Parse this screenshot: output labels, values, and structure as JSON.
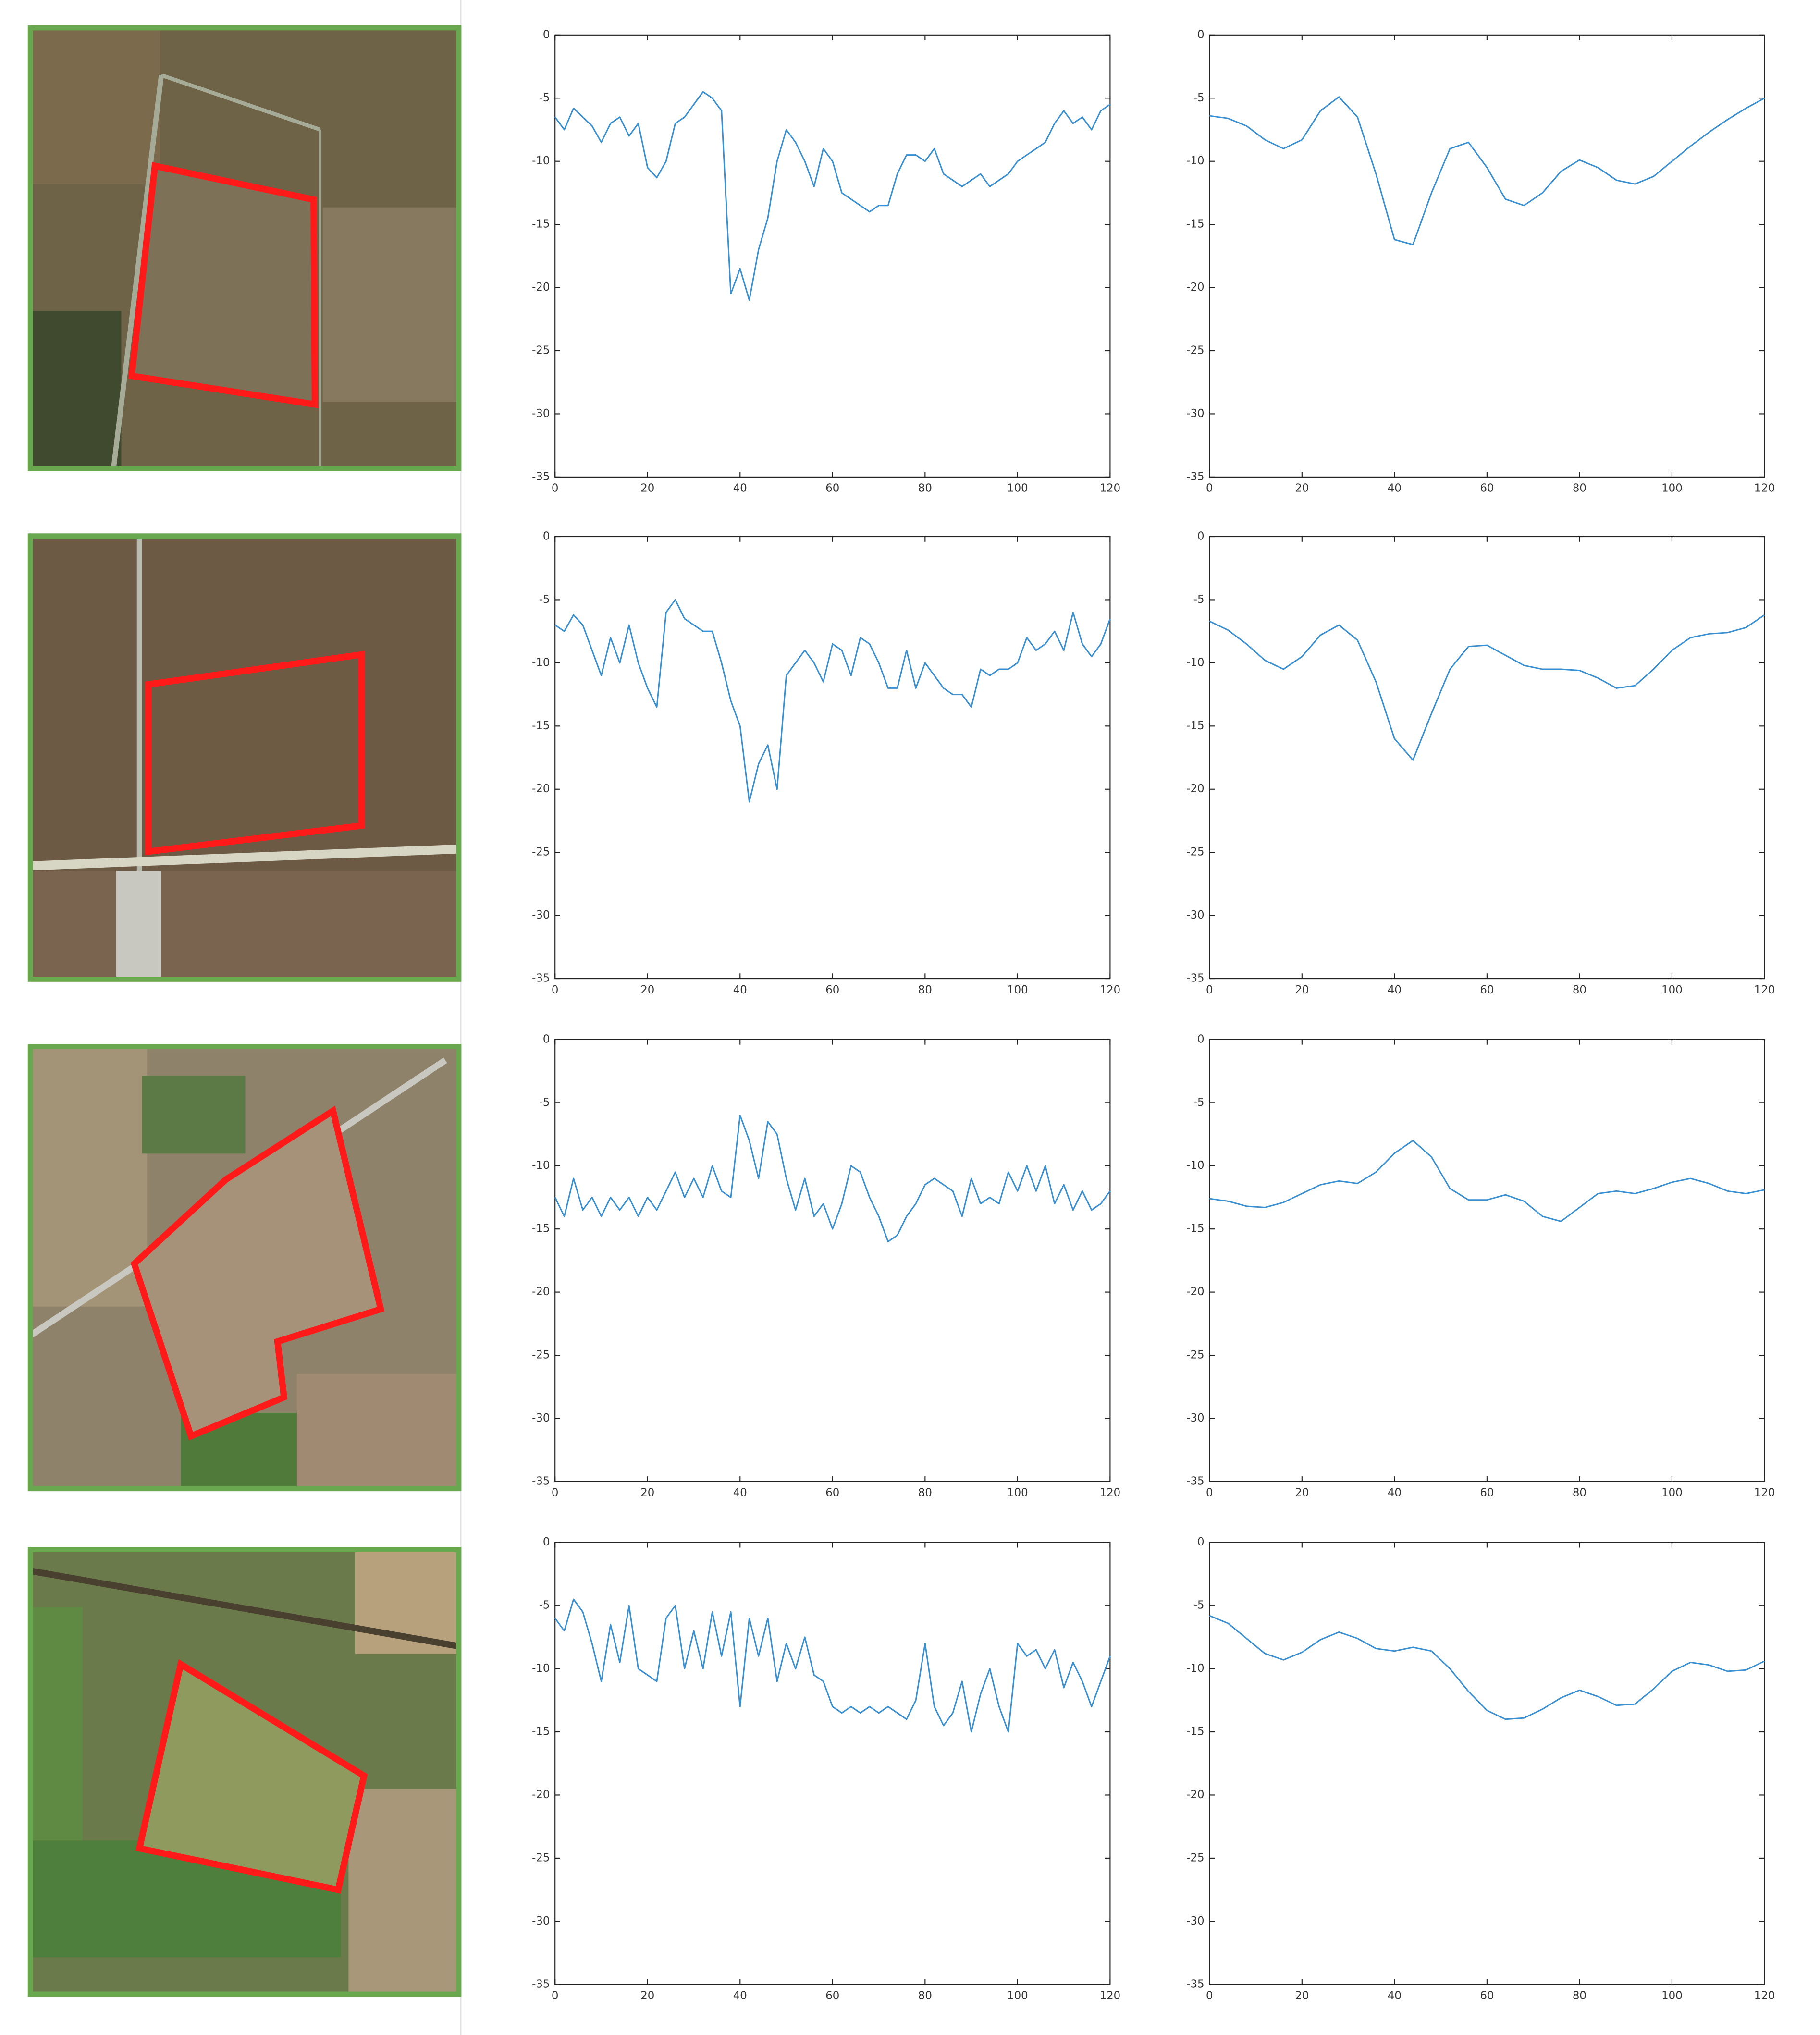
{
  "chart_data": [
    {
      "type": "line",
      "color": "#3a8fd0",
      "xlim": [
        0,
        120
      ],
      "ylim": [
        -35,
        0
      ],
      "xticks": [
        0,
        20,
        40,
        60,
        80,
        100,
        120
      ],
      "yticks": [
        -35,
        -30,
        -25,
        -20,
        -15,
        -10,
        -5,
        0
      ],
      "x": [
        0,
        2,
        4,
        6,
        8,
        10,
        12,
        14,
        16,
        18,
        20,
        22,
        24,
        26,
        28,
        30,
        32,
        34,
        36,
        38,
        40,
        42,
        44,
        46,
        48,
        50,
        52,
        54,
        56,
        58,
        60,
        62,
        64,
        66,
        68,
        70,
        72,
        74,
        76,
        78,
        80,
        82,
        84,
        86,
        88,
        90,
        92,
        94,
        96,
        98,
        100,
        102,
        104,
        106,
        108,
        110,
        112,
        114,
        116,
        118,
        120
      ],
      "values": [
        -6.5,
        -7.5,
        -5.8,
        -6.5,
        -7.2,
        -8.5,
        -7,
        -6.5,
        -8,
        -7,
        -10.5,
        -11.3,
        -10,
        -7,
        -6.5,
        -5.5,
        -4.5,
        -5,
        -6,
        -20.5,
        -18.5,
        -21,
        -17,
        -14.5,
        -10,
        -7.5,
        -8.5,
        -10,
        -12,
        -9,
        -10,
        -12.5,
        -13,
        -13.5,
        -14,
        -13.5,
        -13.5,
        -11,
        -9.5,
        -9.5,
        -10,
        -9,
        -11,
        -11.5,
        -12,
        -11.5,
        -11,
        -12,
        -11.5,
        -11,
        -10,
        -9.5,
        -9,
        -8.5,
        -7,
        -6,
        -7,
        -6.5,
        -7.5,
        -6,
        -5.5
      ]
    },
    {
      "type": "line",
      "color": "#3a8fd0",
      "xlim": [
        0,
        120
      ],
      "ylim": [
        -35,
        0
      ],
      "xticks": [
        0,
        20,
        40,
        60,
        80,
        100,
        120
      ],
      "yticks": [
        -35,
        -30,
        -25,
        -20,
        -15,
        -10,
        -5,
        0
      ],
      "x": [
        0,
        4,
        8,
        12,
        16,
        20,
        24,
        28,
        32,
        36,
        40,
        44,
        48,
        52,
        56,
        60,
        64,
        68,
        72,
        76,
        80,
        84,
        88,
        92,
        96,
        100,
        104,
        108,
        112,
        116,
        120
      ],
      "values": [
        -6.4,
        -6.6,
        -7.2,
        -8.3,
        -9,
        -8.3,
        -6,
        -4.9,
        -6.5,
        -11,
        -16.2,
        -16.6,
        -12.5,
        -9,
        -8.5,
        -10.5,
        -13,
        -13.5,
        -12.5,
        -10.8,
        -9.9,
        -10.5,
        -11.5,
        -11.8,
        -11.2,
        -10,
        -8.8,
        -7.7,
        -6.7,
        -5.8,
        -5
      ]
    },
    {
      "type": "line",
      "color": "#3a8fd0",
      "xlim": [
        0,
        120
      ],
      "ylim": [
        -35,
        0
      ],
      "xticks": [
        0,
        20,
        40,
        60,
        80,
        100,
        120
      ],
      "yticks": [
        -35,
        -30,
        -25,
        -20,
        -15,
        -10,
        -5,
        0
      ],
      "x": [
        0,
        2,
        4,
        6,
        8,
        10,
        12,
        14,
        16,
        18,
        20,
        22,
        24,
        26,
        28,
        30,
        32,
        34,
        36,
        38,
        40,
        42,
        44,
        46,
        48,
        50,
        52,
        54,
        56,
        58,
        60,
        62,
        64,
        66,
        68,
        70,
        72,
        74,
        76,
        78,
        80,
        82,
        84,
        86,
        88,
        90,
        92,
        94,
        96,
        98,
        100,
        102,
        104,
        106,
        108,
        110,
        112,
        114,
        116,
        118,
        120
      ],
      "values": [
        -7,
        -7.5,
        -6.2,
        -7,
        -9,
        -11,
        -8,
        -10,
        -7,
        -10,
        -12,
        -13.5,
        -6,
        -5,
        -6.5,
        -7,
        -7.5,
        -7.5,
        -10,
        -13,
        -15,
        -21,
        -18,
        -16.5,
        -20,
        -11,
        -10,
        -9,
        -10,
        -11.5,
        -8.5,
        -9,
        -11,
        -8,
        -8.5,
        -10,
        -12,
        -12,
        -9,
        -12,
        -10,
        -11,
        -12,
        -12.5,
        -12.5,
        -13.5,
        -10.5,
        -11,
        -10.5,
        -10.5,
        -10,
        -8,
        -9,
        -8.5,
        -7.5,
        -9,
        -6,
        -8.5,
        -9.5,
        -8.5,
        -6.5
      ]
    },
    {
      "type": "line",
      "color": "#3a8fd0",
      "xlim": [
        0,
        120
      ],
      "ylim": [
        -35,
        0
      ],
      "xticks": [
        0,
        20,
        40,
        60,
        80,
        100,
        120
      ],
      "yticks": [
        -35,
        -30,
        -25,
        -20,
        -15,
        -10,
        -5,
        0
      ],
      "x": [
        0,
        4,
        8,
        12,
        16,
        20,
        24,
        28,
        32,
        36,
        40,
        44,
        48,
        52,
        56,
        60,
        64,
        68,
        72,
        76,
        80,
        84,
        88,
        92,
        96,
        100,
        104,
        108,
        112,
        116,
        120
      ],
      "values": [
        -6.7,
        -7.4,
        -8.5,
        -9.8,
        -10.5,
        -9.5,
        -7.8,
        -7,
        -8.2,
        -11.5,
        -16,
        -17.7,
        -14,
        -10.5,
        -8.7,
        -8.6,
        -9.4,
        -10.2,
        -10.5,
        -10.5,
        -10.6,
        -11.2,
        -12,
        -11.8,
        -10.5,
        -9,
        -8,
        -7.7,
        -7.6,
        -7.2,
        -6.2
      ]
    },
    {
      "type": "line",
      "color": "#3a8fd0",
      "xlim": [
        0,
        120
      ],
      "ylim": [
        -35,
        0
      ],
      "xticks": [
        0,
        20,
        40,
        60,
        80,
        100,
        120
      ],
      "yticks": [
        -35,
        -30,
        -25,
        -20,
        -15,
        -10,
        -5,
        0
      ],
      "x": [
        0,
        2,
        4,
        6,
        8,
        10,
        12,
        14,
        16,
        18,
        20,
        22,
        24,
        26,
        28,
        30,
        32,
        34,
        36,
        38,
        40,
        42,
        44,
        46,
        48,
        50,
        52,
        54,
        56,
        58,
        60,
        62,
        64,
        66,
        68,
        70,
        72,
        74,
        76,
        78,
        80,
        82,
        84,
        86,
        88,
        90,
        92,
        94,
        96,
        98,
        100,
        102,
        104,
        106,
        108,
        110,
        112,
        114,
        116,
        118,
        120
      ],
      "values": [
        -12.5,
        -14,
        -11,
        -13.5,
        -12.5,
        -14,
        -12.5,
        -13.5,
        -12.5,
        -14,
        -12.5,
        -13.5,
        -12,
        -10.5,
        -12.5,
        -11,
        -12.5,
        -10,
        -12,
        -12.5,
        -6,
        -8,
        -11,
        -6.5,
        -7.5,
        -11,
        -13.5,
        -11,
        -14,
        -13,
        -15,
        -13,
        -10,
        -10.5,
        -12.5,
        -14,
        -16,
        -15.5,
        -14,
        -13,
        -11.5,
        -11,
        -11.5,
        -12,
        -14,
        -11,
        -13,
        -12.5,
        -13,
        -10.5,
        -12,
        -10,
        -12,
        -10,
        -13,
        -11.5,
        -13.5,
        -12,
        -13.5,
        -13,
        -12
      ]
    },
    {
      "type": "line",
      "color": "#3a8fd0",
      "xlim": [
        0,
        120
      ],
      "ylim": [
        -35,
        0
      ],
      "xticks": [
        0,
        20,
        40,
        60,
        80,
        100,
        120
      ],
      "yticks": [
        -35,
        -30,
        -25,
        -20,
        -15,
        -10,
        -5,
        0
      ],
      "x": [
        0,
        4,
        8,
        12,
        16,
        20,
        24,
        28,
        32,
        36,
        40,
        44,
        48,
        52,
        56,
        60,
        64,
        68,
        72,
        76,
        80,
        84,
        88,
        92,
        96,
        100,
        104,
        108,
        112,
        116,
        120
      ],
      "values": [
        -12.6,
        -12.8,
        -13.2,
        -13.3,
        -12.9,
        -12.2,
        -11.5,
        -11.2,
        -11.4,
        -10.5,
        -9,
        -8,
        -9.3,
        -11.8,
        -12.7,
        -12.7,
        -12.3,
        -12.8,
        -14,
        -14.4,
        -13.3,
        -12.2,
        -12,
        -12.2,
        -11.8,
        -11.3,
        -11,
        -11.4,
        -12,
        -12.2,
        -11.9
      ]
    },
    {
      "type": "line",
      "color": "#3a8fd0",
      "xlim": [
        0,
        120
      ],
      "ylim": [
        -35,
        0
      ],
      "xticks": [
        0,
        20,
        40,
        60,
        80,
        100,
        120
      ],
      "yticks": [
        -35,
        -30,
        -25,
        -20,
        -15,
        -10,
        -5,
        0
      ],
      "x": [
        0,
        2,
        4,
        6,
        8,
        10,
        12,
        14,
        16,
        18,
        20,
        22,
        24,
        26,
        28,
        30,
        32,
        34,
        36,
        38,
        40,
        42,
        44,
        46,
        48,
        50,
        52,
        54,
        56,
        58,
        60,
        62,
        64,
        66,
        68,
        70,
        72,
        74,
        76,
        78,
        80,
        82,
        84,
        86,
        88,
        90,
        92,
        94,
        96,
        98,
        100,
        102,
        104,
        106,
        108,
        110,
        112,
        114,
        116,
        118,
        120
      ],
      "values": [
        -6,
        -7,
        -4.5,
        -5.5,
        -8,
        -11,
        -6.5,
        -9.5,
        -5,
        -10,
        -10.5,
        -11,
        -6,
        -5,
        -10,
        -7,
        -10,
        -5.5,
        -9,
        -5.5,
        -13,
        -6,
        -9,
        -6,
        -11,
        -8,
        -10,
        -7.5,
        -10.5,
        -11,
        -13,
        -13.5,
        -13,
        -13.5,
        -13,
        -13.5,
        -13,
        -13.5,
        -14,
        -12.5,
        -8,
        -13,
        -14.5,
        -13.5,
        -11,
        -15,
        -12,
        -10,
        -13,
        -15,
        -8,
        -9,
        -8.5,
        -10,
        -8.5,
        -11.5,
        -9.5,
        -11,
        -13,
        -11,
        -9
      ]
    },
    {
      "type": "line",
      "color": "#3a8fd0",
      "xlim": [
        0,
        120
      ],
      "ylim": [
        -35,
        0
      ],
      "xticks": [
        0,
        20,
        40,
        60,
        80,
        100,
        120
      ],
      "yticks": [
        -35,
        -30,
        -25,
        -20,
        -15,
        -10,
        -5,
        0
      ],
      "x": [
        0,
        4,
        8,
        12,
        16,
        20,
        24,
        28,
        32,
        36,
        40,
        44,
        48,
        52,
        56,
        60,
        64,
        68,
        72,
        76,
        80,
        84,
        88,
        92,
        96,
        100,
        104,
        108,
        112,
        116,
        120
      ],
      "values": [
        -5.8,
        -6.4,
        -7.6,
        -8.8,
        -9.3,
        -8.7,
        -7.7,
        -7.1,
        -7.6,
        -8.4,
        -8.6,
        -8.3,
        -8.6,
        -10,
        -11.8,
        -13.3,
        -14,
        -13.9,
        -13.2,
        -12.3,
        -11.7,
        -12.2,
        -12.9,
        -12.8,
        -11.6,
        -10.2,
        -9.5,
        -9.7,
        -10.2,
        -10.1,
        -9.4
      ]
    }
  ]
}
